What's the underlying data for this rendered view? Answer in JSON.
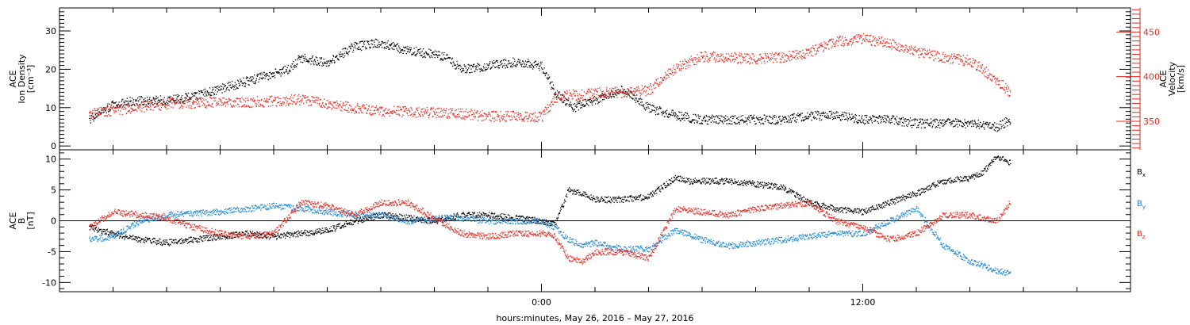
{
  "footer_label": "hours:minutes, May 26, 2016 – May 27, 2016",
  "time_axis": {
    "range_hours": [
      -18.0,
      22.0
    ],
    "major_ticks": [
      {
        "value": 0,
        "label": "0:00"
      },
      {
        "value": 12,
        "label": "12:00"
      }
    ],
    "tick_step_hours": 2
  },
  "chart_data": [
    {
      "type": "scatter",
      "title": "",
      "ylabel_lines": [
        "ACE",
        "Ion Density",
        "[cm⁻³]"
      ],
      "ylim": [
        -1,
        36
      ],
      "yticks": [
        0,
        10,
        20,
        30
      ],
      "ylabel_right_lines": [
        "ACE",
        "Velocity",
        "[km/s]"
      ],
      "ylim_right": [
        318,
        477
      ],
      "yticks_right": [
        350,
        400,
        450
      ],
      "grid": false,
      "series": [
        {
          "axis": "left",
          "color": "#000000",
          "x": [
            -16.9,
            -16.0,
            -15.0,
            -14.0,
            -13.0,
            -12.0,
            -11.0,
            -10.0,
            -9.5,
            -9.0,
            -8.0,
            -7.0,
            -6.0,
            -5.0,
            -4.0,
            -3.5,
            -3.0,
            -2.0,
            -1.0,
            0.0,
            0.5,
            1.0,
            1.2,
            1.5,
            2.0,
            3.0,
            4.0,
            5.0,
            6.0,
            7.0,
            8.0,
            9.0,
            10.0,
            11.0,
            12.0,
            13.0,
            14.0,
            15.0,
            16.0,
            17.0,
            17.5
          ],
          "y": [
            7,
            11,
            12,
            12,
            13,
            15,
            17,
            19,
            20,
            23,
            22,
            26,
            27,
            25,
            24,
            23,
            20,
            21,
            22,
            21,
            14,
            11,
            10,
            11,
            12,
            15,
            10,
            8,
            7,
            7,
            7,
            7,
            8,
            8,
            7,
            7,
            6,
            6,
            6,
            5,
            7
          ]
        },
        {
          "axis": "right",
          "color": "#e8261d",
          "x": [
            -16.9,
            -16.0,
            -15.0,
            -14.0,
            -13.0,
            -12.0,
            -11.0,
            -10.0,
            -9.0,
            -8.0,
            -7.0,
            -6.0,
            -5.0,
            -4.0,
            -3.0,
            -2.0,
            -1.0,
            0.0,
            0.5,
            1.0,
            1.5,
            2.0,
            3.0,
            4.0,
            4.5,
            5.0,
            6.0,
            7.0,
            8.0,
            9.0,
            10.0,
            11.0,
            12.0,
            13.0,
            14.0,
            15.0,
            16.0,
            17.0,
            17.5
          ],
          "y": [
            358,
            363,
            366,
            370,
            371,
            372,
            372,
            373,
            375,
            370,
            365,
            362,
            361,
            360,
            359,
            356,
            356,
            355,
            377,
            380,
            380,
            382,
            383,
            385,
            398,
            410,
            423,
            422,
            420,
            422,
            428,
            440,
            443,
            438,
            428,
            422,
            418,
            397,
            382
          ]
        }
      ]
    },
    {
      "type": "scatter",
      "title": "",
      "ylabel_lines": [
        "ACE",
        "B",
        "[nT]"
      ],
      "ylim": [
        -11.5,
        11.5
      ],
      "yticks": [
        -10,
        -5,
        0,
        5,
        10
      ],
      "zero_line": true,
      "grid": false,
      "series": [
        {
          "name": "Bx",
          "color": "#000000",
          "x": [
            -16.9,
            -16.0,
            -15.0,
            -14.0,
            -13.0,
            -12.0,
            -11.0,
            -10.0,
            -9.0,
            -8.0,
            -7.0,
            -6.0,
            -5.0,
            -4.0,
            -3.0,
            -2.0,
            -1.0,
            0.0,
            0.5,
            1.0,
            1.5,
            2.0,
            3.0,
            4.0,
            5.0,
            5.5,
            6.0,
            7.0,
            8.0,
            9.0,
            10.0,
            11.0,
            12.0,
            13.0,
            14.0,
            15.0,
            16.0,
            16.5,
            17.0,
            17.5
          ],
          "y": [
            -1,
            -2,
            -3,
            -3.5,
            -3,
            -2.5,
            -2,
            -2.5,
            -2,
            -1.5,
            0,
            1,
            0.5,
            0,
            1,
            1,
            0.5,
            0,
            -0.5,
            5,
            4.5,
            3.5,
            3.5,
            4,
            7,
            6.5,
            6.5,
            6.5,
            6,
            5.5,
            3,
            2,
            1.5,
            3,
            4.5,
            6.5,
            7,
            8,
            10.5,
            9.5
          ]
        },
        {
          "name": "By",
          "color": "#1c86d8",
          "x": [
            -16.9,
            -16.0,
            -15.0,
            -14.0,
            -13.0,
            -12.0,
            -11.0,
            -10.0,
            -9.0,
            -8.0,
            -7.0,
            -6.0,
            -5.0,
            -4.0,
            -3.0,
            -2.0,
            -1.0,
            0.0,
            0.5,
            1.0,
            1.5,
            2.0,
            3.0,
            4.0,
            5.0,
            6.0,
            7.0,
            8.0,
            9.0,
            10.0,
            11.0,
            12.0,
            13.0,
            14.0,
            15.0,
            16.0,
            17.0,
            17.5
          ],
          "y": [
            -3,
            -2.5,
            0,
            1,
            1.2,
            1.5,
            2,
            2.5,
            2,
            1.5,
            1,
            1,
            0,
            0.5,
            0.5,
            0,
            0,
            0,
            -1,
            -3,
            -4,
            -3.5,
            -4.5,
            -4.5,
            -1.5,
            -3,
            -4,
            -3.5,
            -3,
            -2.5,
            -2,
            -2,
            0,
            2,
            -4,
            -6.5,
            -8,
            -8.5
          ]
        },
        {
          "name": "Bz",
          "color": "#e8261d",
          "x": [
            -16.9,
            -16.0,
            -15.0,
            -14.0,
            -13.0,
            -12.0,
            -11.0,
            -10.0,
            -9.0,
            -8.0,
            -7.0,
            -6.0,
            -5.0,
            -4.0,
            -3.0,
            -2.0,
            -1.0,
            0.0,
            0.5,
            1.0,
            1.5,
            2.0,
            3.0,
            4.0,
            5.0,
            6.0,
            7.0,
            8.0,
            9.0,
            10.0,
            11.0,
            12.0,
            13.0,
            14.0,
            15.0,
            16.0,
            17.0,
            17.5
          ],
          "y": [
            -1,
            1.5,
            1,
            0.5,
            -1,
            -2,
            -2.5,
            -2,
            3,
            2.5,
            1,
            3,
            3,
            0.5,
            -2,
            -2.5,
            -2,
            -2,
            -2.5,
            -6,
            -6.5,
            -5,
            -5,
            -6,
            2,
            1.5,
            1,
            2,
            2.5,
            3,
            0,
            -1,
            -3,
            -2,
            1,
            1,
            0,
            3
          ]
        }
      ]
    }
  ],
  "legend": [
    {
      "name": "Bx",
      "base": "B",
      "sub": "x",
      "color": "#000000"
    },
    {
      "name": "By",
      "base": "B",
      "sub": "y",
      "color": "#1c86d8"
    },
    {
      "name": "Bz",
      "base": "B",
      "sub": "z",
      "color": "#e8261d"
    }
  ]
}
